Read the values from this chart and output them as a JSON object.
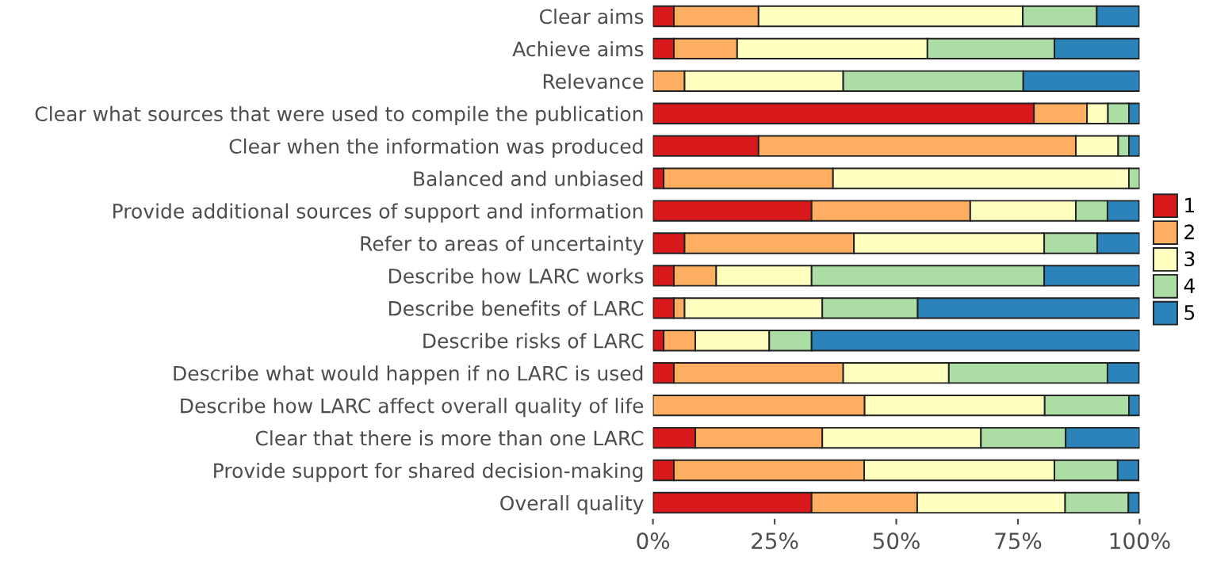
{
  "chart_data": {
    "type": "bar",
    "orientation": "horizontal",
    "stacked": true,
    "categories": [
      "Clear aims",
      "Achieve aims",
      "Relevance",
      "Clear what sources that were used to compile the publication",
      "Clear when the information was produced",
      "Balanced and unbiased",
      "Provide additional sources of support and information",
      "Refer to areas of uncertainty",
      "Describe how LARC works",
      "Describe benefits of LARC",
      "Describe risks of LARC",
      "Describe what would happen if no LARC is used",
      "Describe how LARC affect overall quality of life",
      "Clear that there is more than one LARC",
      "Provide support for shared decision-making",
      "Overall quality"
    ],
    "series": [
      {
        "name": "1",
        "color": "#d7191c",
        "values": [
          4.3,
          4.3,
          0,
          78.3,
          21.7,
          2.2,
          32.6,
          6.5,
          4.3,
          4.3,
          2.2,
          4.3,
          0,
          8.7,
          4.3,
          32.6
        ]
      },
      {
        "name": "2",
        "color": "#fdae61",
        "values": [
          17.4,
          13.0,
          6.5,
          10.9,
          65.2,
          34.8,
          32.6,
          34.8,
          8.7,
          2.2,
          6.5,
          34.8,
          43.5,
          26.1,
          39.1,
          21.7
        ]
      },
      {
        "name": "3",
        "color": "#ffffbf",
        "values": [
          54.3,
          39.1,
          32.6,
          4.3,
          8.7,
          60.8,
          21.7,
          39.1,
          19.6,
          28.3,
          15.2,
          21.7,
          37.0,
          32.6,
          39.1,
          30.4
        ]
      },
      {
        "name": "4",
        "color": "#abdda4",
        "values": [
          15.2,
          26.1,
          37.0,
          4.3,
          2.2,
          2.2,
          6.5,
          10.9,
          47.8,
          19.6,
          8.7,
          32.6,
          17.3,
          17.4,
          13.0,
          13.0
        ]
      },
      {
        "name": "5",
        "color": "#2b83ba",
        "values": [
          8.7,
          17.4,
          23.9,
          2.2,
          2.2,
          0,
          6.5,
          8.7,
          19.6,
          45.6,
          67.4,
          6.5,
          2.2,
          15.2,
          4.3,
          2.2
        ]
      }
    ],
    "xlim": [
      0,
      100
    ],
    "xticks": [
      {
        "value": 0,
        "label": "0%"
      },
      {
        "value": 25,
        "label": "25%"
      },
      {
        "value": 50,
        "label": "50%"
      },
      {
        "value": 75,
        "label": "75%"
      },
      {
        "value": 100,
        "label": "100%"
      }
    ],
    "grid": false,
    "legend": "right"
  }
}
